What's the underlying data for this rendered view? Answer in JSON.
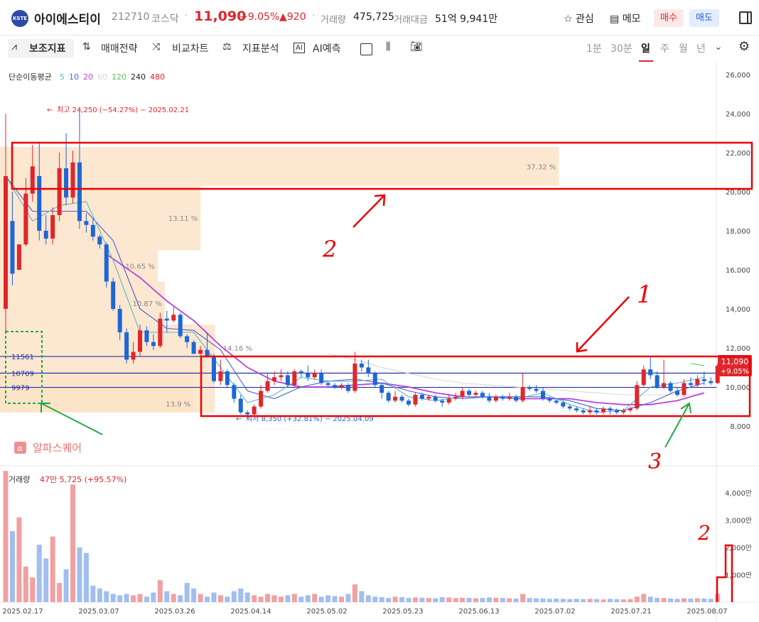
{
  "header": {
    "logo_text": "KSTE",
    "stock_name": "아이에스티이",
    "code": "212710",
    "market": "코스닥",
    "price": "11,090",
    "change_pct": "+9.05%",
    "change_amount": "▲920",
    "volume_label": "거래량",
    "volume_value": "475,725",
    "amount_label": "거래대금",
    "amount_value": "51억 9,941만",
    "watch_label": "관심",
    "memo_label": "메모",
    "buy_label": "매수",
    "sell_label": "매도",
    "colors": {
      "up": "#e0262b",
      "down": "#1e66d6"
    }
  },
  "toolbar": {
    "indicators": "보조지표",
    "strategy": "매매전략",
    "compare": "비교차트",
    "analysis": "지표분석",
    "ai_badge": "AI",
    "ai_predict": "AI예측",
    "periods": [
      "1분",
      "30분",
      "일",
      "주",
      "월",
      "년"
    ],
    "active_period": "일"
  },
  "chart_data": {
    "type": "candlestick",
    "ma_legend": {
      "title": "단순이동평균",
      "periods": [
        "5",
        "10",
        "20",
        "60",
        "120",
        "240",
        "480"
      ],
      "colors": [
        "#5ab5c8",
        "#4a5fd0",
        "#b844d8",
        "#d8d8d8",
        "#5cc85c",
        "#222222",
        "#e0262b"
      ]
    },
    "y_ticks": [
      "26,000",
      "24,000",
      "22,000",
      "20,000",
      "18,000",
      "16,000",
      "14,000",
      "12,000",
      "10,000",
      "8,000"
    ],
    "x_ticks": [
      "2025.02.17",
      "2025.03.07",
      "2025.03.26",
      "2025.04.14",
      "2025.05.02",
      "2025.05.23",
      "2025.06.13",
      "2025.07.02",
      "2025.07.21",
      "2025.08.07"
    ],
    "high_label": "최고 24,250 (−54.27%) − 2025.02.21",
    "low_label": "최저 8,350 (+32.81%) − 2025.04.09",
    "price_badge": "11,090",
    "price_badge_pct": "+9.05%",
    "horizontal_lines": [
      "11561",
      "10709",
      "9979"
    ],
    "volume_profile": [
      {
        "from": 20300,
        "to": 22300,
        "pct": "37.32 %",
        "len": 0.78
      },
      {
        "from": 17000,
        "to": 20300,
        "pct": "13.11 %",
        "len": 0.28
      },
      {
        "from": 15400,
        "to": 17000,
        "pct": "10.65 %",
        "len": 0.22
      },
      {
        "from": 13200,
        "to": 15400,
        "pct": "10.87 %",
        "len": 0.23
      },
      {
        "from": 8700,
        "to": 13200,
        "pct": "14.16 %",
        "len": 0.3
      },
      {
        "from": 8700,
        "to": 10700,
        "pct": "13.9 %",
        "len": 0.27
      }
    ],
    "candles": [
      [
        14000,
        20800,
        12800,
        24000
      ],
      [
        18500,
        15800,
        15200,
        20000
      ],
      [
        16000,
        17300,
        16000,
        17300
      ],
      [
        17300,
        19900,
        17200,
        20700
      ],
      [
        19900,
        21300,
        19500,
        22400
      ],
      [
        20800,
        18000,
        17500,
        22500
      ],
      [
        18000,
        17600,
        17300,
        18800
      ],
      [
        17600,
        18800,
        17300,
        19200
      ],
      [
        18800,
        21200,
        18500,
        22000
      ],
      [
        21200,
        19700,
        19300,
        23000
      ],
      [
        19700,
        21500,
        19400,
        22100
      ],
      [
        21500,
        18500,
        18100,
        24250
      ],
      [
        18500,
        18300,
        17900,
        18900
      ],
      [
        18300,
        17700,
        17500,
        18600
      ],
      [
        17700,
        17300,
        17100,
        17800
      ],
      [
        17300,
        15400,
        15100,
        17400
      ],
      [
        15400,
        14000,
        13900,
        15600
      ],
      [
        14000,
        12800,
        12400,
        14200
      ],
      [
        12800,
        11400,
        11200,
        13000
      ],
      [
        11400,
        11800,
        11200,
        12300
      ],
      [
        11800,
        12900,
        11600,
        13200
      ],
      [
        12900,
        12300,
        12100,
        13100
      ],
      [
        12300,
        12100,
        11900,
        12700
      ],
      [
        12100,
        13500,
        12000,
        13800
      ],
      [
        13500,
        13400,
        12800,
        13900
      ],
      [
        13400,
        13700,
        13300,
        14100
      ],
      [
        13700,
        12600,
        12500,
        13800
      ],
      [
        12600,
        12300,
        12000,
        12700
      ],
      [
        12300,
        11700,
        11700,
        12400
      ],
      [
        11700,
        11900,
        11600,
        12100
      ],
      [
        11900,
        11600,
        11500,
        12800
      ],
      [
        11600,
        10300,
        10200,
        11700
      ],
      [
        10300,
        10800,
        10100,
        11400
      ],
      [
        10800,
        10100,
        10000,
        10900
      ],
      [
        10100,
        9400,
        9200,
        10200
      ],
      [
        9400,
        8700,
        8600,
        9600
      ],
      [
        8700,
        8600,
        8350,
        8800
      ],
      [
        8600,
        9000,
        8500,
        9100
      ],
      [
        9000,
        9800,
        8900,
        10100
      ],
      [
        9800,
        10300,
        9700,
        10700
      ],
      [
        10300,
        10500,
        10100,
        10800
      ],
      [
        10500,
        10600,
        10300,
        10900
      ],
      [
        10600,
        10100,
        10000,
        10800
      ],
      [
        10100,
        10800,
        10000,
        10900
      ],
      [
        10800,
        10700,
        10500,
        10900
      ],
      [
        10700,
        10500,
        10300,
        11100
      ],
      [
        10500,
        10700,
        10400,
        10900
      ],
      [
        10700,
        10200,
        10100,
        10900
      ],
      [
        10200,
        10100,
        10000,
        10300
      ],
      [
        10100,
        10000,
        9900,
        10200
      ],
      [
        10000,
        10100,
        9900,
        10200
      ],
      [
        10100,
        9800,
        9700,
        10200
      ],
      [
        9800,
        11200,
        9700,
        11800
      ],
      [
        11200,
        11000,
        10800,
        11400
      ],
      [
        11000,
        10700,
        10500,
        11400
      ],
      [
        10700,
        10100,
        10000,
        10800
      ],
      [
        10100,
        9700,
        9400,
        10200
      ],
      [
        9700,
        9300,
        9200,
        9800
      ],
      [
        9300,
        9500,
        9200,
        9800
      ],
      [
        9500,
        9300,
        9200,
        9600
      ],
      [
        9300,
        9100,
        9000,
        9400
      ],
      [
        9100,
        9600,
        9000,
        9700
      ],
      [
        9600,
        9400,
        9300,
        9700
      ],
      [
        9400,
        9500,
        9300,
        9600
      ],
      [
        9500,
        9300,
        9200,
        9600
      ],
      [
        9300,
        9200,
        9000,
        9400
      ],
      [
        9200,
        9400,
        9100,
        9600
      ],
      [
        9400,
        9500,
        9300,
        9700
      ],
      [
        9500,
        9800,
        9400,
        10000
      ],
      [
        9800,
        9600,
        9500,
        9900
      ],
      [
        9600,
        9700,
        9500,
        9800
      ],
      [
        9700,
        9500,
        9400,
        9800
      ],
      [
        9500,
        9300,
        9200,
        9700
      ],
      [
        9300,
        9500,
        9200,
        9600
      ],
      [
        9500,
        9400,
        9300,
        9600
      ],
      [
        9400,
        9500,
        9300,
        9700
      ],
      [
        9500,
        9300,
        9200,
        9600
      ],
      [
        9300,
        10000,
        9200,
        10700
      ],
      [
        10000,
        9900,
        9800,
        10100
      ],
      [
        9900,
        9800,
        9700,
        10100
      ],
      [
        9800,
        9400,
        9300,
        10000
      ],
      [
        9400,
        9300,
        9200,
        9500
      ],
      [
        9300,
        9200,
        9100,
        9400
      ],
      [
        9200,
        9000,
        8900,
        9300
      ],
      [
        9000,
        8900,
        8800,
        9100
      ],
      [
        8900,
        8800,
        8700,
        9000
      ],
      [
        8800,
        8700,
        8600,
        8900
      ],
      [
        8700,
        8800,
        8600,
        9000
      ],
      [
        8800,
        8700,
        8600,
        8900
      ],
      [
        8700,
        8900,
        8600,
        9000
      ],
      [
        8900,
        8800,
        8600,
        9000
      ],
      [
        8800,
        8700,
        8600,
        8900
      ],
      [
        8700,
        8800,
        8600,
        8900
      ],
      [
        8800,
        8900,
        8700,
        9000
      ],
      [
        8900,
        10100,
        8800,
        10300
      ],
      [
        10100,
        10900,
        10000,
        11100
      ],
      [
        10900,
        10600,
        10400,
        11500
      ],
      [
        10600,
        10000,
        9900,
        10800
      ],
      [
        10000,
        10200,
        9900,
        11400
      ],
      [
        10200,
        9800,
        9700,
        10300
      ],
      [
        9800,
        9600,
        9500,
        10000
      ],
      [
        9600,
        10200,
        9500,
        10400
      ],
      [
        10200,
        10100,
        10000,
        10500
      ],
      [
        10100,
        10400,
        10000,
        10600
      ],
      [
        10400,
        10300,
        10100,
        10800
      ],
      [
        10300,
        10200,
        10100,
        10500
      ],
      [
        10200,
        11090,
        10150,
        11200
      ]
    ],
    "ma5": [
      [
        0,
        20800
      ],
      [
        4,
        18500
      ],
      [
        8,
        19300
      ],
      [
        12,
        19500
      ],
      [
        16,
        16500
      ],
      [
        20,
        12800
      ],
      [
        24,
        12800
      ],
      [
        28,
        12800
      ],
      [
        32,
        11000
      ],
      [
        36,
        9200
      ],
      [
        40,
        9600
      ],
      [
        44,
        10500
      ],
      [
        48,
        10300
      ],
      [
        52,
        10300
      ],
      [
        56,
        10400
      ],
      [
        60,
        9500
      ],
      [
        64,
        9300
      ],
      [
        68,
        9500
      ],
      [
        72,
        9500
      ],
      [
        76,
        9400
      ],
      [
        80,
        9700
      ],
      [
        84,
        9100
      ],
      [
        88,
        8700
      ],
      [
        92,
        8800
      ],
      [
        96,
        10000
      ],
      [
        100,
        10200
      ],
      [
        104,
        10500
      ]
    ],
    "ma10": [
      [
        0,
        20800
      ],
      [
        4,
        19000
      ],
      [
        8,
        19000
      ],
      [
        12,
        19000
      ],
      [
        16,
        17500
      ],
      [
        20,
        14000
      ],
      [
        24,
        13000
      ],
      [
        28,
        12900
      ],
      [
        32,
        11900
      ],
      [
        36,
        9800
      ],
      [
        40,
        9400
      ],
      [
        44,
        10000
      ],
      [
        48,
        10300
      ],
      [
        52,
        10400
      ],
      [
        56,
        10200
      ],
      [
        60,
        9800
      ],
      [
        64,
        9500
      ],
      [
        68,
        9400
      ],
      [
        72,
        9500
      ],
      [
        76,
        9500
      ],
      [
        80,
        9500
      ],
      [
        84,
        9300
      ],
      [
        88,
        8900
      ],
      [
        92,
        8800
      ],
      [
        96,
        9200
      ],
      [
        100,
        9800
      ],
      [
        104,
        10200
      ]
    ],
    "ma20": [
      [
        15,
        16800
      ],
      [
        20,
        15600
      ],
      [
        24,
        14400
      ],
      [
        28,
        13400
      ],
      [
        32,
        12100
      ],
      [
        36,
        11000
      ],
      [
        40,
        10300
      ],
      [
        44,
        10000
      ],
      [
        48,
        10000
      ],
      [
        52,
        10100
      ],
      [
        56,
        10200
      ],
      [
        60,
        10000
      ],
      [
        64,
        9700
      ],
      [
        68,
        9500
      ],
      [
        72,
        9500
      ],
      [
        76,
        9400
      ],
      [
        80,
        9400
      ],
      [
        84,
        9400
      ],
      [
        88,
        9200
      ],
      [
        92,
        9100
      ],
      [
        96,
        9100
      ],
      [
        100,
        9300
      ],
      [
        104,
        9700
      ]
    ],
    "ma60": [
      [
        48,
        11700
      ],
      [
        52,
        11400
      ],
      [
        56,
        11000
      ],
      [
        60,
        10700
      ],
      [
        64,
        10400
      ],
      [
        68,
        10200
      ],
      [
        72,
        10100
      ],
      [
        76,
        10000
      ],
      [
        80,
        9900
      ],
      [
        84,
        9800
      ],
      [
        88,
        9700
      ],
      [
        92,
        9600
      ],
      [
        96,
        9600
      ],
      [
        100,
        9600
      ],
      [
        104,
        9600
      ]
    ],
    "ma120": [
      [
        102,
        11200
      ],
      [
        104,
        11100
      ]
    ],
    "volume": {
      "label": "거래량",
      "value": "47만 5,725 (+95.57%)",
      "ticks": [
        "4,000만",
        "3,000만",
        "2,000만",
        "1,000만"
      ],
      "bars": [
        4800,
        2600,
        3100,
        1300,
        900,
        2100,
        1600,
        2400,
        700,
        1200,
        4300,
        2000,
        1800,
        600,
        500,
        400,
        300,
        250,
        300,
        250,
        300,
        200,
        350,
        800,
        400,
        300,
        250,
        700,
        500,
        300,
        200,
        350,
        250,
        200,
        400,
        500,
        350,
        250,
        200,
        300,
        250,
        200,
        250,
        300,
        200,
        250,
        300,
        200,
        250,
        220,
        200,
        300,
        650,
        400,
        250,
        200,
        180,
        150,
        200,
        180,
        150,
        170,
        160,
        150,
        140,
        180,
        170,
        150,
        160,
        150,
        140,
        150,
        170,
        160,
        150,
        140,
        130,
        300,
        150,
        140,
        130,
        120,
        130,
        120,
        110,
        120,
        110,
        120,
        110,
        100,
        120,
        110,
        100,
        110,
        200,
        300,
        200,
        150,
        150,
        130,
        120,
        140,
        130,
        140,
        130,
        120,
        300
      ]
    },
    "annotations": {
      "label_one": "1",
      "label_two": "2",
      "label_three": "3",
      "watermark": "알파스퀘어"
    }
  }
}
